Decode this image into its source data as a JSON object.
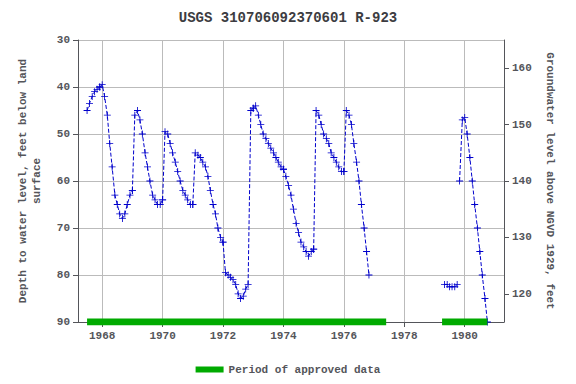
{
  "chart_data": {
    "type": "line",
    "title": "USGS 310706092370601 R-923",
    "ylabel": "Depth to water level, feet below land\nsurface",
    "y2label": "Groundwater level above NGVD 1929, feet",
    "xlim": [
      1967.2,
      1981.3
    ],
    "xticks": [
      1968,
      1970,
      1972,
      1974,
      1976,
      1978,
      1980
    ],
    "ylim": [
      90,
      30
    ],
    "yticks": [
      30,
      40,
      50,
      60,
      70,
      80,
      90
    ],
    "y2lim": [
      115,
      165
    ],
    "y2ticks": [
      120,
      130,
      140,
      150,
      160
    ],
    "grid": true,
    "legend": "bottom",
    "series": [
      {
        "color": "#0000CC",
        "marker": "plus",
        "line_style": "dashed",
        "x": [
          1967.5,
          1967.58,
          1967.67,
          1967.75,
          1967.83,
          1967.92
        ],
        "values": [
          45.0,
          43.5,
          42.0,
          41.0,
          40.5,
          40.0
        ]
      },
      {
        "color": "#0000CC",
        "marker": "plus",
        "line_style": "dashed",
        "x": [
          1967.92,
          1968.0,
          1968.08,
          1968.17,
          1968.25,
          1968.33,
          1968.42,
          1968.5,
          1968.58,
          1968.67,
          1968.75,
          1968.83,
          1968.92,
          1969.0
        ],
        "values": [
          40.0,
          39.5,
          42.0,
          46.0,
          52.0,
          57.0,
          63.0,
          65.0,
          67.0,
          68.0,
          67.0,
          65.0,
          63.0,
          62.0
        ]
      },
      {
        "color": "#0000CC",
        "marker": "plus",
        "line_style": "dashed",
        "x": [
          1969.0,
          1969.08,
          1969.17,
          1969.25,
          1969.33,
          1969.42,
          1969.5,
          1969.58,
          1969.67,
          1969.75,
          1969.83,
          1969.92,
          1970.0
        ],
        "values": [
          62.0,
          46.0,
          45.0,
          47.0,
          50.0,
          54.0,
          57.0,
          60.0,
          63.0,
          64.0,
          65.0,
          65.0,
          64.0
        ]
      },
      {
        "color": "#0000CC",
        "marker": "plus",
        "line_style": "dashed",
        "x": [
          1970.0,
          1970.08,
          1970.17,
          1970.25,
          1970.33,
          1970.42,
          1970.5,
          1970.58,
          1970.67,
          1970.75,
          1970.83,
          1970.92,
          1971.0
        ],
        "values": [
          64.0,
          49.5,
          50.0,
          52.0,
          54.0,
          56.0,
          58.0,
          60.0,
          62.0,
          63.0,
          64.0,
          65.0,
          65.0
        ]
      },
      {
        "color": "#0000CC",
        "marker": "plus",
        "line_style": "dashed",
        "x": [
          1971.0,
          1971.08,
          1971.17,
          1971.25,
          1971.33,
          1971.42,
          1971.5,
          1971.58,
          1971.67,
          1971.75,
          1971.83,
          1971.92,
          1972.0
        ],
        "values": [
          65.0,
          54.0,
          54.5,
          55.0,
          56.0,
          57.0,
          59.0,
          62.0,
          65.0,
          67.0,
          70.0,
          72.0,
          73.0
        ]
      },
      {
        "color": "#0000CC",
        "marker": "plus",
        "line_style": "dashed",
        "x": [
          1972.0,
          1972.08,
          1972.17,
          1972.25,
          1972.33,
          1972.42,
          1972.5,
          1972.58,
          1972.67,
          1972.75,
          1972.83,
          1972.92,
          1973.0
        ],
        "values": [
          73.0,
          79.5,
          80.0,
          80.5,
          81.0,
          82.0,
          84.0,
          85.0,
          84.5,
          83.0,
          82.0,
          45.0,
          44.5
        ]
      },
      {
        "color": "#0000CC",
        "marker": "plus",
        "line_style": "dashed",
        "x": [
          1973.0,
          1973.08,
          1973.17,
          1973.25,
          1973.33,
          1973.42,
          1973.5,
          1973.58,
          1973.67,
          1973.75,
          1973.83,
          1973.92,
          1974.0
        ],
        "values": [
          44.5,
          44.0,
          46.0,
          48.0,
          50.0,
          51.0,
          52.0,
          53.0,
          54.0,
          55.0,
          56.0,
          57.0,
          57.5
        ]
      },
      {
        "color": "#0000CC",
        "marker": "plus",
        "line_style": "dashed",
        "x": [
          1974.0,
          1974.08,
          1974.17,
          1974.25,
          1974.33,
          1974.42,
          1974.5,
          1974.58,
          1974.67,
          1974.75,
          1974.83,
          1974.92,
          1975.0
        ],
        "values": [
          57.5,
          59.0,
          61.0,
          63.0,
          66.0,
          69.0,
          71.0,
          73.0,
          74.0,
          75.0,
          76.0,
          75.0,
          74.5
        ]
      },
      {
        "color": "#0000CC",
        "marker": "plus",
        "line_style": "dashed",
        "x": [
          1975.0,
          1975.08,
          1975.17,
          1975.25,
          1975.33,
          1975.42,
          1975.5,
          1975.58,
          1975.67,
          1975.75,
          1975.83,
          1975.92,
          1976.0
        ],
        "values": [
          74.5,
          45.0,
          46.0,
          48.0,
          50.0,
          51.0,
          52.0,
          54.0,
          55.0,
          56.0,
          57.0,
          58.0,
          58.0
        ]
      },
      {
        "color": "#0000CC",
        "marker": "plus",
        "line_style": "dashed",
        "x": [
          1976.0,
          1976.08,
          1976.17,
          1976.25,
          1976.33,
          1976.42,
          1976.5,
          1976.58,
          1976.67,
          1976.75,
          1976.83
        ],
        "values": [
          58.0,
          45.0,
          46.0,
          48.0,
          52.0,
          56.0,
          60.0,
          65.0,
          70.0,
          75.0,
          80.0
        ]
      },
      {
        "color": "#0000CC",
        "marker": "plus",
        "line_style": "dashed",
        "x": [
          1979.33,
          1979.42,
          1979.5,
          1979.58,
          1979.67,
          1979.75
        ],
        "values": [
          82.0,
          82.0,
          82.5,
          82.5,
          82.5,
          82.0
        ]
      },
      {
        "color": "#0000CC",
        "marker": "plus",
        "line_style": "dashed",
        "x": [
          1979.83,
          1979.92,
          1980.0,
          1980.08,
          1980.17,
          1980.25,
          1980.33,
          1980.42,
          1980.5,
          1980.58,
          1980.67,
          1980.75
        ],
        "values": [
          60.0,
          47.0,
          46.5,
          50.0,
          55.0,
          60.0,
          65.0,
          70.0,
          75.0,
          80.0,
          85.0,
          90.0
        ]
      },
      {
        "name": "Period of approved data",
        "type": "band",
        "color": "#00AA00",
        "periods": [
          [
            1967.5,
            1977.4
          ],
          [
            1979.25,
            1980.75
          ]
        ]
      }
    ]
  }
}
